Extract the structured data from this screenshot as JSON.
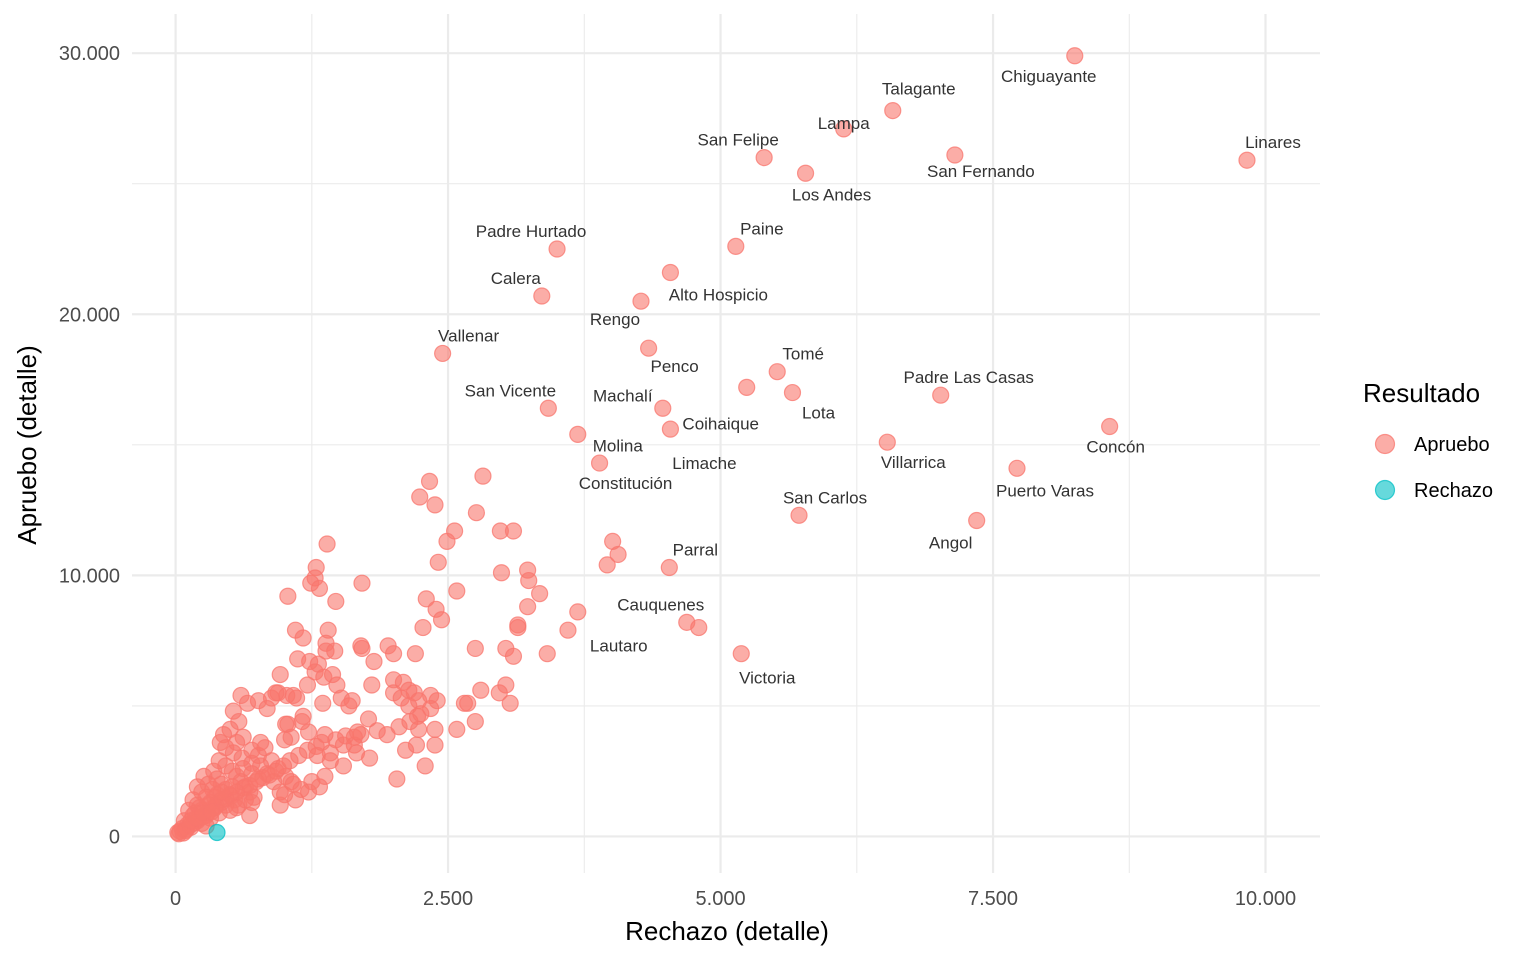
{
  "chart_data": {
    "type": "scatter",
    "xlabel": "Rechazo (detalle)",
    "ylabel": "Apruebo (detalle)",
    "xlim": [
      -400,
      10500
    ],
    "ylim": [
      -1400,
      31500
    ],
    "x_ticks": [
      0,
      2500,
      5000,
      7500,
      10000
    ],
    "x_tick_labels": [
      "0",
      "2.500",
      "5.000",
      "7.500",
      "10.000"
    ],
    "y_ticks": [
      0,
      10000,
      20000,
      30000
    ],
    "y_tick_labels": [
      "0",
      "10.000",
      "20.000",
      "30.000"
    ],
    "grid": true,
    "legend": {
      "title": "Resultado",
      "position": "right",
      "entries": [
        {
          "label": "Apruebo",
          "color": "#F8766D"
        },
        {
          "label": "Rechazo",
          "color": "#00BFC4"
        }
      ]
    },
    "series": [
      {
        "name": "Apruebo",
        "color": "#F8766D",
        "labeled_points": [
          {
            "x": 8250,
            "y": 29900,
            "label": "Chiguayante"
          },
          {
            "x": 6580,
            "y": 27800,
            "label": "Talagante"
          },
          {
            "x": 6130,
            "y": 27100,
            "label": "Lampa"
          },
          {
            "x": 5400,
            "y": 26000,
            "label": "San Felipe"
          },
          {
            "x": 7150,
            "y": 26100,
            "label": "San Fernando"
          },
          {
            "x": 5780,
            "y": 25400,
            "label": "Los Andes"
          },
          {
            "x": 9830,
            "y": 25900,
            "label": "Linares"
          },
          {
            "x": 3500,
            "y": 22500,
            "label": "Padre Hurtado"
          },
          {
            "x": 5140,
            "y": 22600,
            "label": "Paine"
          },
          {
            "x": 3360,
            "y": 20700,
            "label": "Calera"
          },
          {
            "x": 4540,
            "y": 21600,
            "label": "Alto Hospicio"
          },
          {
            "x": 4270,
            "y": 20500,
            "label": "Rengo"
          },
          {
            "x": 2450,
            "y": 18500,
            "label": "Vallenar"
          },
          {
            "x": 4340,
            "y": 18700,
            "label": "Penco"
          },
          {
            "x": 5520,
            "y": 17800,
            "label": "Tomé"
          },
          {
            "x": 5240,
            "y": 17200,
            "label": "Coihaique"
          },
          {
            "x": 5660,
            "y": 17000,
            "label": "Lota"
          },
          {
            "x": 7020,
            "y": 16900,
            "label": "Padre Las Casas"
          },
          {
            "x": 3420,
            "y": 16400,
            "label": "San Vicente"
          },
          {
            "x": 4470,
            "y": 16400,
            "label": "Machalí"
          },
          {
            "x": 8570,
            "y": 15700,
            "label": "Concón"
          },
          {
            "x": 4540,
            "y": 15600,
            "label": "Limache"
          },
          {
            "x": 3690,
            "y": 15400,
            "label": "Molina"
          },
          {
            "x": 6530,
            "y": 15100,
            "label": "Villarrica"
          },
          {
            "x": 3890,
            "y": 14300,
            "label": "Constitución"
          },
          {
            "x": 7720,
            "y": 14100,
            "label": "Puerto Varas"
          },
          {
            "x": 5720,
            "y": 12300,
            "label": "San Carlos"
          },
          {
            "x": 7350,
            "y": 12100,
            "label": "Angol"
          },
          {
            "x": 4530,
            "y": 10300,
            "label": "Parral"
          },
          {
            "x": 4690,
            "y": 8200,
            "label": "Cauquenes"
          },
          {
            "x": 4800,
            "y": 8000,
            "label": "Lautaro"
          },
          {
            "x": 5190,
            "y": 7000,
            "label": "Victoria"
          }
        ],
        "points": [
          [
            2820,
            13800
          ],
          [
            2330,
            13600
          ],
          [
            2240,
            13000
          ],
          [
            2380,
            12700
          ],
          [
            2760,
            12400
          ],
          [
            2560,
            11700
          ],
          [
            2980,
            11700
          ],
          [
            3100,
            11700
          ],
          [
            2490,
            11300
          ],
          [
            4010,
            11300
          ],
          [
            1390,
            11200
          ],
          [
            4060,
            10800
          ],
          [
            2410,
            10500
          ],
          [
            3960,
            10400
          ],
          [
            1290,
            10300
          ],
          [
            3230,
            10200
          ],
          [
            2990,
            10100
          ],
          [
            1280,
            9900
          ],
          [
            1240,
            9700
          ],
          [
            1710,
            9700
          ],
          [
            1320,
            9500
          ],
          [
            3240,
            9800
          ],
          [
            2580,
            9400
          ],
          [
            3340,
            9300
          ],
          [
            1030,
            9200
          ],
          [
            2300,
            9100
          ],
          [
            1470,
            9000
          ],
          [
            2390,
            8700
          ],
          [
            3230,
            8800
          ],
          [
            3690,
            8600
          ],
          [
            2440,
            8300
          ],
          [
            3140,
            8100
          ],
          [
            2270,
            8000
          ],
          [
            1100,
            7900
          ],
          [
            1400,
            7900
          ],
          [
            3600,
            7900
          ],
          [
            3140,
            8000
          ],
          [
            1170,
            7600
          ],
          [
            1380,
            7400
          ],
          [
            1700,
            7300
          ],
          [
            1950,
            7300
          ],
          [
            1380,
            7100
          ],
          [
            1460,
            7100
          ],
          [
            1710,
            7200
          ],
          [
            2750,
            7200
          ],
          [
            3030,
            7200
          ],
          [
            3410,
            7000
          ],
          [
            2000,
            7000
          ],
          [
            2200,
            7000
          ],
          [
            3100,
            6900
          ],
          [
            1120,
            6800
          ],
          [
            1230,
            6700
          ],
          [
            1310,
            6600
          ],
          [
            1820,
            6700
          ],
          [
            960,
            6200
          ],
          [
            1280,
            6300
          ],
          [
            1440,
            6200
          ],
          [
            1360,
            6100
          ],
          [
            2000,
            6000
          ],
          [
            2090,
            5900
          ],
          [
            1210,
            5800
          ],
          [
            1480,
            5800
          ],
          [
            1800,
            5800
          ],
          [
            3030,
            5800
          ],
          [
            940,
            5500
          ],
          [
            1020,
            5400
          ],
          [
            1110,
            5300
          ],
          [
            1520,
            5300
          ],
          [
            2140,
            5600
          ],
          [
            2800,
            5600
          ],
          [
            2190,
            5500
          ],
          [
            2000,
            5500
          ],
          [
            2970,
            5500
          ],
          [
            2340,
            5400
          ],
          [
            1620,
            5200
          ],
          [
            2070,
            5300
          ],
          [
            2230,
            5200
          ],
          [
            2400,
            5200
          ],
          [
            2650,
            5100
          ],
          [
            2680,
            5100
          ],
          [
            3070,
            5100
          ],
          [
            1350,
            5100
          ],
          [
            1590,
            5000
          ],
          [
            2140,
            5000
          ],
          [
            2220,
            4600
          ],
          [
            1770,
            4500
          ],
          [
            2750,
            4400
          ],
          [
            2380,
            4100
          ],
          [
            1030,
            4300
          ],
          [
            1160,
            4400
          ],
          [
            2230,
            4100
          ],
          [
            1370,
            3900
          ],
          [
            1700,
            3900
          ],
          [
            1220,
            4000
          ],
          [
            1940,
            3900
          ],
          [
            2580,
            4100
          ],
          [
            1060,
            3800
          ],
          [
            1640,
            3800
          ],
          [
            1540,
            3500
          ],
          [
            1640,
            3500
          ],
          [
            2210,
            3500
          ],
          [
            2380,
            3500
          ],
          [
            1420,
            3200
          ],
          [
            1660,
            3200
          ],
          [
            1780,
            3000
          ],
          [
            2110,
            3300
          ],
          [
            1540,
            2700
          ],
          [
            2290,
            2700
          ],
          [
            2030,
            2200
          ],
          [
            1370,
            2300
          ],
          [
            1250,
            2100
          ],
          [
            1060,
            2100
          ],
          [
            1220,
            1700
          ],
          [
            1320,
            1900
          ],
          [
            1000,
            1600
          ],
          [
            960,
            1200
          ],
          [
            1100,
            1400
          ],
          [
            960,
            1700
          ],
          [
            680,
            800
          ],
          [
            600,
            5400
          ],
          [
            530,
            4800
          ],
          [
            580,
            4400
          ],
          [
            500,
            4100
          ],
          [
            440,
            3900
          ],
          [
            410,
            3600
          ],
          [
            460,
            3400
          ],
          [
            530,
            3200
          ],
          [
            610,
            3000
          ],
          [
            700,
            2800
          ],
          [
            760,
            3100
          ],
          [
            820,
            3400
          ],
          [
            880,
            2900
          ],
          [
            940,
            2600
          ],
          [
            1010,
            2300
          ],
          [
            1080,
            2000
          ],
          [
            1150,
            1800
          ],
          [
            880,
            5300
          ],
          [
            920,
            5500
          ],
          [
            1080,
            5400
          ],
          [
            1010,
            4300
          ],
          [
            660,
            5100
          ],
          [
            760,
            5200
          ],
          [
            840,
            4900
          ],
          [
            620,
            3800
          ],
          [
            560,
            3600
          ],
          [
            700,
            3300
          ],
          [
            780,
            2700
          ],
          [
            840,
            2400
          ],
          [
            900,
            2100
          ],
          [
            400,
            2900
          ],
          [
            460,
            2700
          ],
          [
            520,
            2500
          ],
          [
            560,
            2300
          ],
          [
            600,
            2100
          ],
          [
            640,
            1900
          ],
          [
            680,
            1700
          ],
          [
            720,
            1500
          ],
          [
            350,
            2500
          ],
          [
            380,
            2200
          ],
          [
            420,
            2000
          ],
          [
            460,
            1800
          ],
          [
            500,
            1600
          ],
          [
            540,
            1400
          ],
          [
            580,
            1200
          ],
          [
            260,
            2300
          ],
          [
            300,
            2000
          ],
          [
            340,
            1800
          ],
          [
            380,
            1600
          ],
          [
            420,
            1400
          ],
          [
            460,
            1200
          ],
          [
            500,
            1000
          ],
          [
            200,
            1900
          ],
          [
            240,
            1700
          ],
          [
            280,
            1500
          ],
          [
            320,
            1300
          ],
          [
            360,
            1100
          ],
          [
            400,
            900
          ],
          [
            160,
            1400
          ],
          [
            200,
            1200
          ],
          [
            240,
            1000
          ],
          [
            280,
            800
          ],
          [
            320,
            700
          ],
          [
            120,
            1000
          ],
          [
            160,
            800
          ],
          [
            200,
            600
          ],
          [
            240,
            500
          ],
          [
            280,
            400
          ],
          [
            80,
            600
          ],
          [
            110,
            450
          ],
          [
            140,
            350
          ],
          [
            60,
            300
          ],
          [
            90,
            220
          ],
          [
            40,
            200
          ],
          [
            20,
            150
          ],
          [
            30,
            100
          ],
          [
            70,
            130
          ],
          [
            100,
            280
          ],
          [
            130,
            420
          ],
          [
            170,
            520
          ],
          [
            210,
            680
          ],
          [
            250,
            760
          ],
          [
            290,
            900
          ],
          [
            330,
            1050
          ],
          [
            370,
            1180
          ],
          [
            420,
            1300
          ],
          [
            460,
            1450
          ],
          [
            510,
            1550
          ],
          [
            560,
            1700
          ],
          [
            620,
            1850
          ],
          [
            680,
            1950
          ],
          [
            740,
            2100
          ],
          [
            800,
            2250
          ],
          [
            860,
            2350
          ],
          [
            920,
            2500
          ],
          [
            990,
            2700
          ],
          [
            1050,
            2900
          ],
          [
            1130,
            3100
          ],
          [
            1210,
            3300
          ],
          [
            1290,
            3450
          ],
          [
            1340,
            3600
          ],
          [
            1470,
            3700
          ],
          [
            1560,
            3850
          ],
          [
            1670,
            4000
          ],
          [
            1850,
            4050
          ],
          [
            2050,
            4200
          ],
          [
            2150,
            4400
          ],
          [
            2250,
            4700
          ],
          [
            2340,
            4900
          ],
          [
            1170,
            4600
          ],
          [
            780,
            3600
          ],
          [
            1000,
            3700
          ],
          [
            1300,
            3100
          ],
          [
            1420,
            2900
          ],
          [
            520,
            1900
          ],
          [
            620,
            2600
          ],
          [
            700,
            2400
          ],
          [
            760,
            2200
          ],
          [
            560,
            1100
          ],
          [
            640,
            1400
          ],
          [
            700,
            1300
          ],
          [
            360,
            1500
          ],
          [
            420,
            1700
          ],
          [
            180,
            900
          ],
          [
            220,
            1100
          ],
          [
            300,
            1200
          ],
          [
            140,
            600
          ],
          [
            190,
            700
          ],
          [
            250,
            900
          ],
          [
            330,
            950
          ]
        ]
      },
      {
        "name": "Rechazo",
        "color": "#00BFC4",
        "points": [
          [
            380,
            150
          ]
        ]
      }
    ]
  }
}
